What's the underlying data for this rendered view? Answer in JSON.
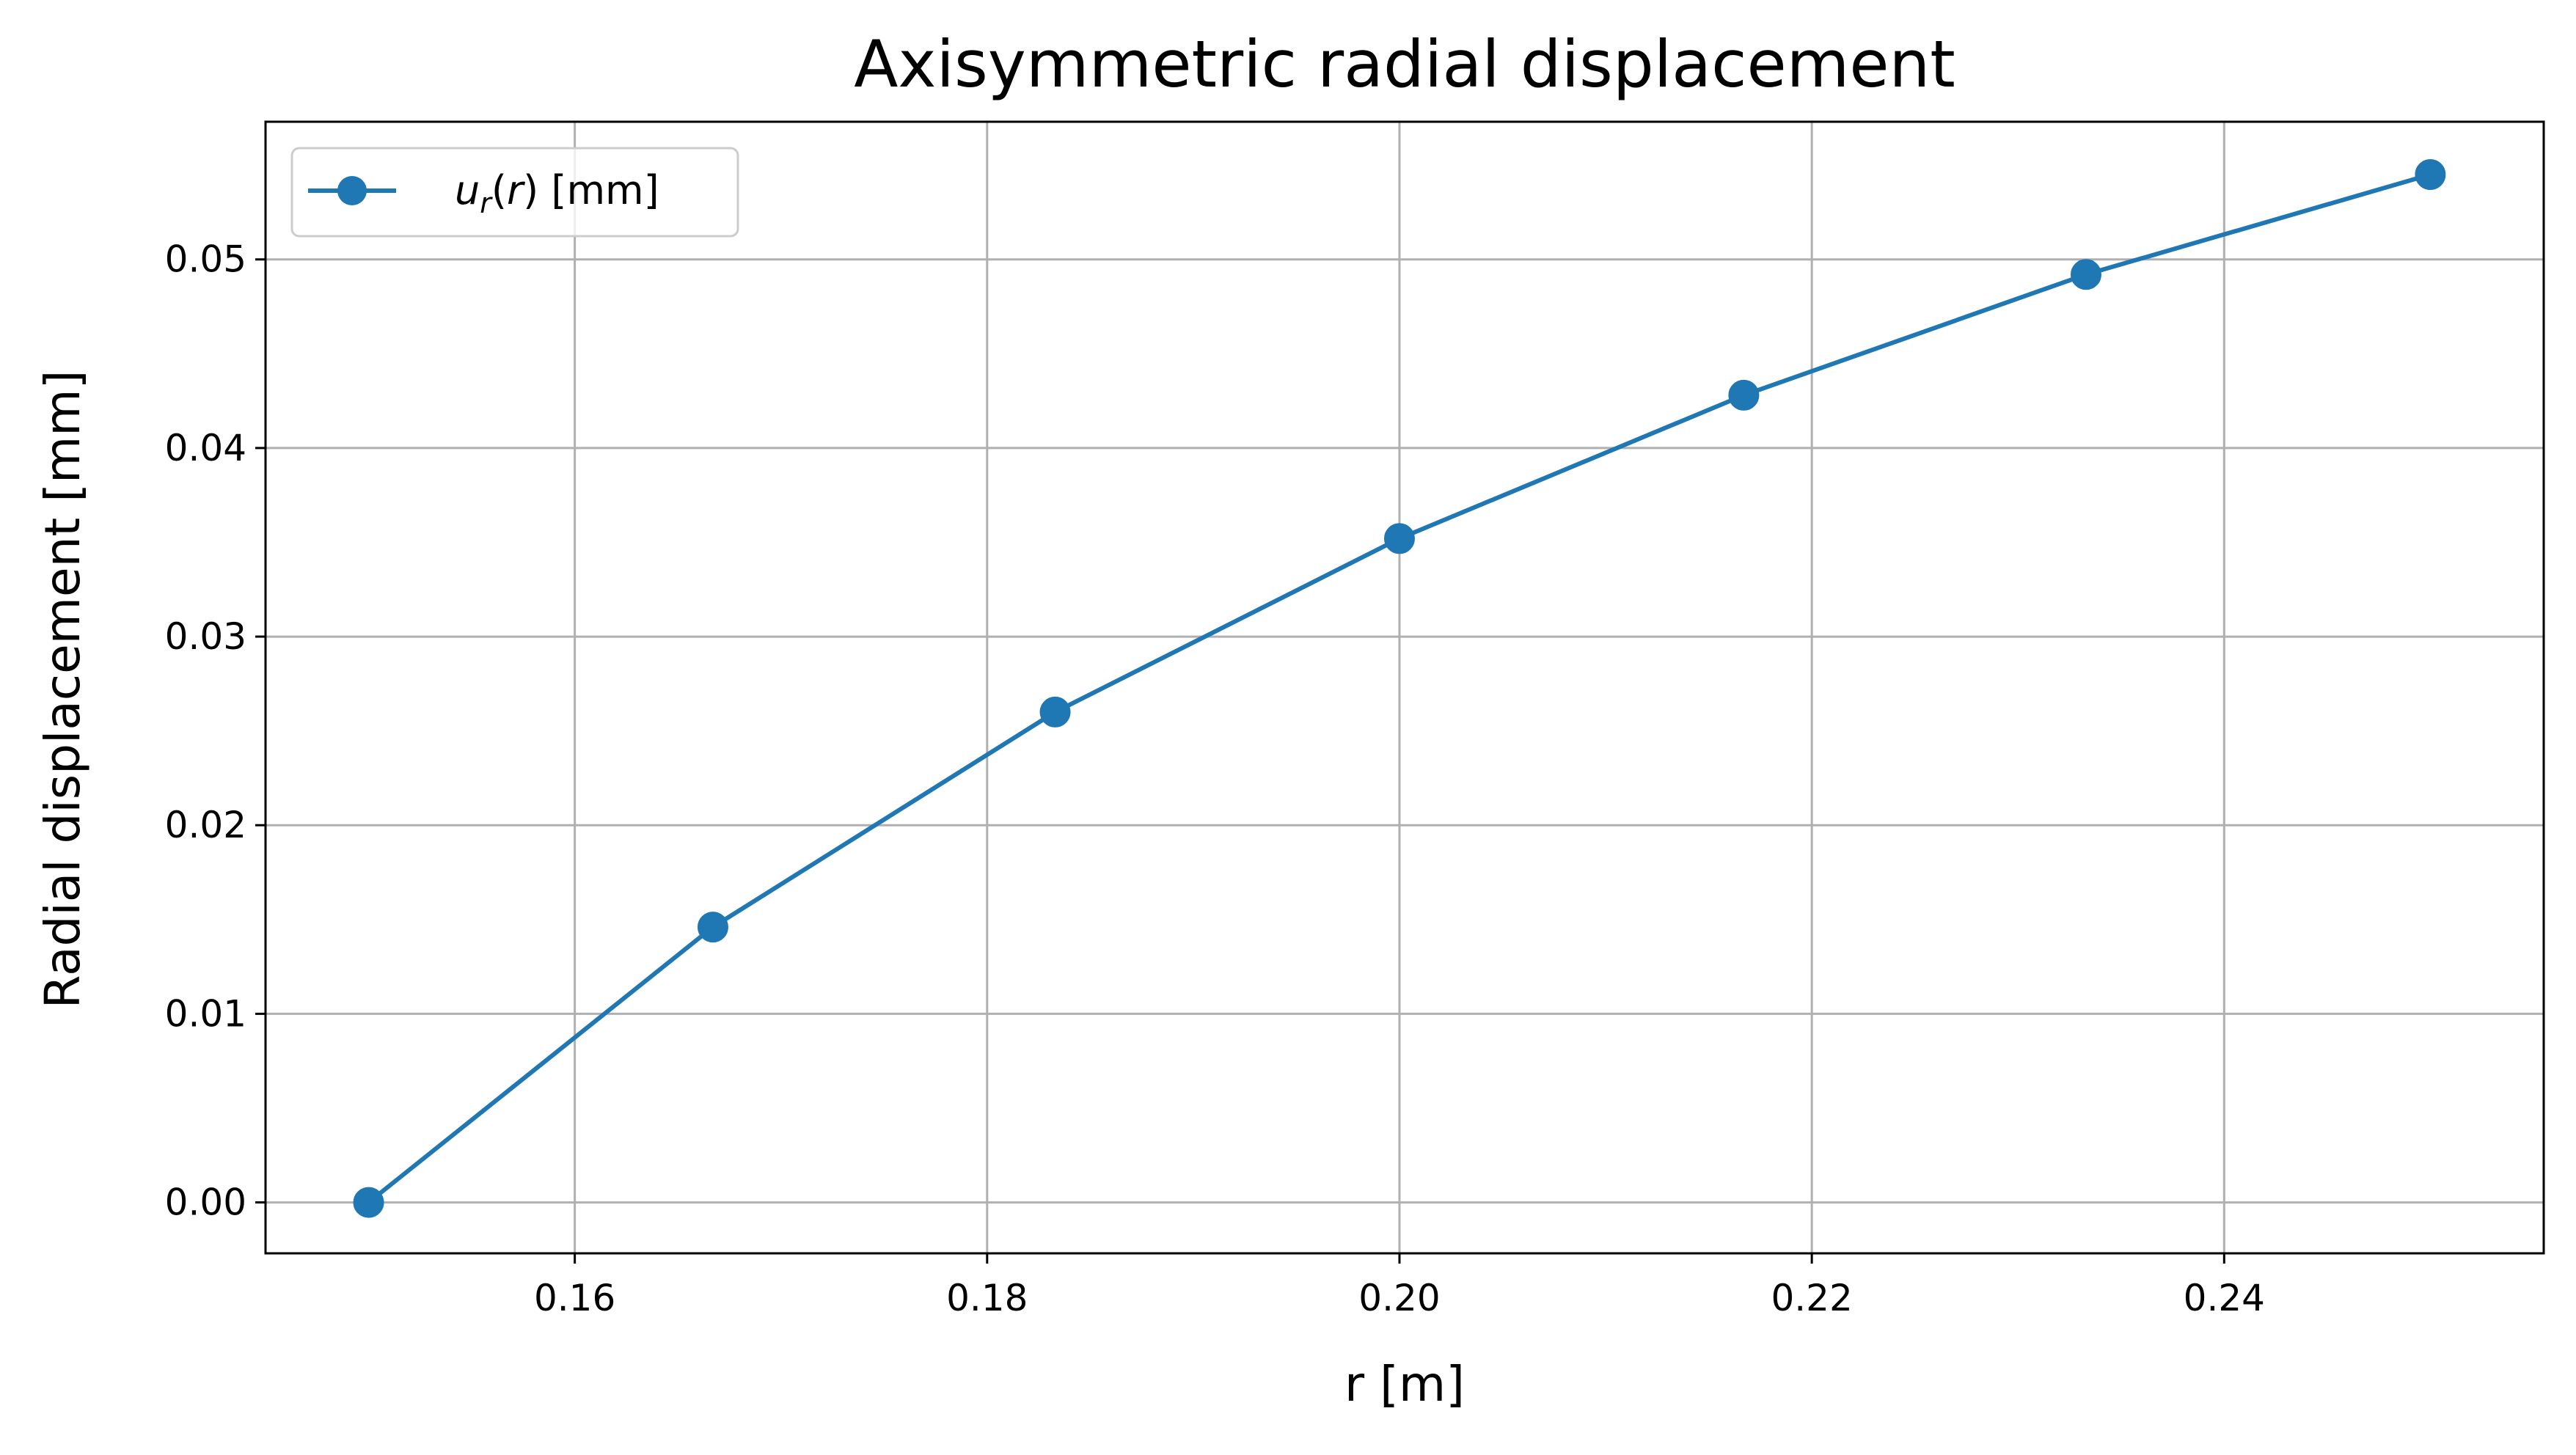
{
  "chart_data": {
    "type": "line",
    "title": "Axisymmetric radial displacement",
    "xlabel": "r [m]",
    "ylabel": "Radial displacement [mm]",
    "xlim": [
      0.145,
      0.2555
    ],
    "ylim": [
      -0.0027,
      0.0573
    ],
    "grid": true,
    "legend": {
      "location": "upper-left"
    },
    "x_ticks": [
      {
        "value": 0.16,
        "label": "0.16"
      },
      {
        "value": 0.18,
        "label": "0.18"
      },
      {
        "value": 0.2,
        "label": "0.20"
      },
      {
        "value": 0.22,
        "label": "0.22"
      },
      {
        "value": 0.24,
        "label": "0.24"
      }
    ],
    "y_ticks": [
      {
        "value": 0.0,
        "label": "0.00"
      },
      {
        "value": 0.01,
        "label": "0.01"
      },
      {
        "value": 0.02,
        "label": "0.02"
      },
      {
        "value": 0.03,
        "label": "0.03"
      },
      {
        "value": 0.04,
        "label": "0.04"
      },
      {
        "value": 0.05,
        "label": "0.05"
      }
    ],
    "series": [
      {
        "name": "u_r(r) [mm]",
        "legend_parts": {
          "u": "u",
          "sub": "r",
          "mid": "(",
          "arg": "r",
          "rest": ") [mm]"
        },
        "color": "#1f77b4",
        "marker": "circle",
        "x": [
          0.15,
          0.1667,
          0.1833,
          0.2,
          0.2167,
          0.2333,
          0.25
        ],
        "y": [
          0.0,
          0.0146,
          0.026,
          0.0352,
          0.0428,
          0.0492,
          0.0545
        ]
      }
    ]
  }
}
